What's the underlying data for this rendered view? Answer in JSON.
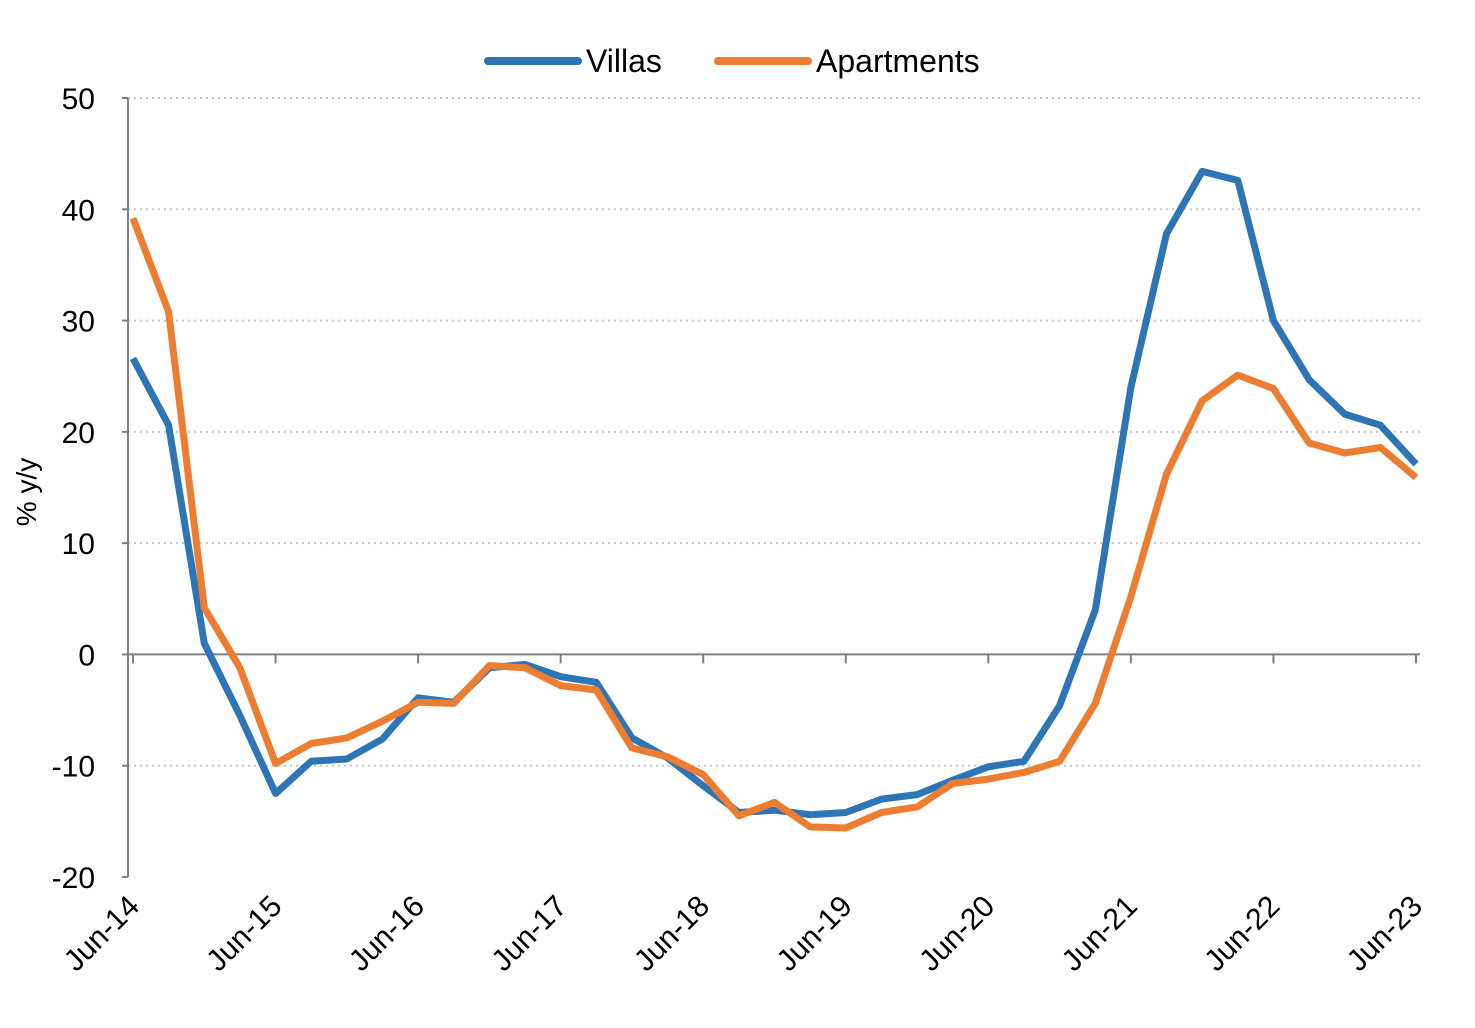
{
  "chart_data": {
    "type": "line",
    "ylabel": "% y/y",
    "xlabel": "",
    "title": "",
    "ylim": [
      -20,
      50
    ],
    "yticks": [
      -20,
      -10,
      0,
      10,
      20,
      30,
      40,
      50
    ],
    "xlim": [
      "Jun-14",
      "Jun-23"
    ],
    "x_tick_labels": [
      "Jun-14",
      "Jun-15",
      "Jun-16",
      "Jun-17",
      "Jun-18",
      "Jun-19",
      "Jun-20",
      "Jun-21",
      "Jun-22",
      "Jun-23"
    ],
    "x_quarters": [
      "Jun-14",
      "Sep-14",
      "Dec-14",
      "Mar-15",
      "Jun-15",
      "Sep-15",
      "Dec-15",
      "Mar-16",
      "Jun-16",
      "Sep-16",
      "Dec-16",
      "Mar-17",
      "Jun-17",
      "Sep-17",
      "Dec-17",
      "Mar-18",
      "Jun-18",
      "Sep-18",
      "Dec-18",
      "Mar-19",
      "Jun-19",
      "Sep-19",
      "Dec-19",
      "Mar-20",
      "Jun-20",
      "Sep-20",
      "Dec-20",
      "Mar-21",
      "Jun-21",
      "Sep-21",
      "Dec-21",
      "Mar-22",
      "Jun-22",
      "Sep-22",
      "Dec-22",
      "Mar-23",
      "Jun-23"
    ],
    "grid": true,
    "legend_position": "top",
    "series": [
      {
        "name": "Villas",
        "color": "#2E75B6",
        "values": [
          26.6,
          20.6,
          1.0,
          -5.5,
          -12.5,
          -9.6,
          -9.4,
          -7.6,
          -3.9,
          -4.3,
          -1.2,
          -0.9,
          -2.0,
          -2.5,
          -7.5,
          -9.3,
          -11.8,
          -14.2,
          -14.0,
          -14.4,
          -14.2,
          -13.0,
          -12.6,
          -11.3,
          -10.1,
          -9.6,
          -4.6,
          4.0,
          24.0,
          37.8,
          43.4,
          42.6,
          30.0,
          24.7,
          21.6,
          20.6,
          17.1
        ]
      },
      {
        "name": "Apartments",
        "color": "#ED7D31",
        "values": [
          39.2,
          30.8,
          4.2,
          -1.2,
          -9.8,
          -8.0,
          -7.5,
          -6.0,
          -4.3,
          -4.4,
          -1.0,
          -1.2,
          -2.8,
          -3.2,
          -8.4,
          -9.2,
          -10.8,
          -14.5,
          -13.3,
          -15.5,
          -15.6,
          -14.2,
          -13.7,
          -11.6,
          -11.2,
          -10.6,
          -9.6,
          -4.4,
          5.2,
          16.2,
          22.8,
          25.1,
          23.9,
          19.0,
          18.1,
          18.6,
          15.9
        ]
      }
    ]
  }
}
